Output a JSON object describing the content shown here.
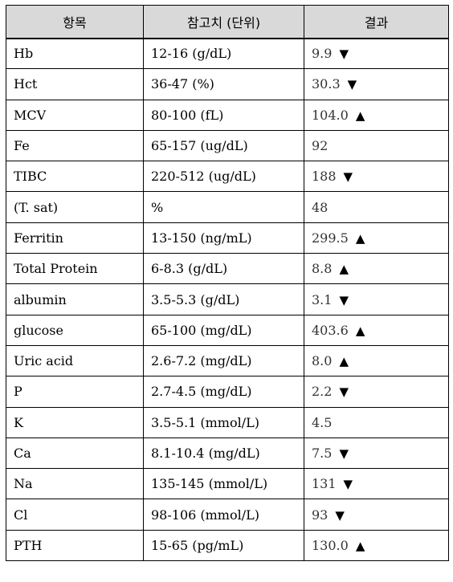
{
  "headers": [
    "항목",
    "참고치 (단위)",
    "결과"
  ],
  "rows": [
    {
      "item": "Hb",
      "ref": "12-16 (g/dL)",
      "result": "9.9",
      "flag": "▼"
    },
    {
      "item": "Hct",
      "ref": "36-47 (%)",
      "result": "30.3",
      "flag": "▼"
    },
    {
      "item": "MCV",
      "ref": "80-100 (fL)",
      "result": "104.0",
      "flag": "▲"
    },
    {
      "item": "Fe",
      "ref": "65-157 (ug/dL)",
      "result": "92",
      "flag": ""
    },
    {
      "item": "TIBC",
      "ref": "220-512 (ug/dL)",
      "result": "188",
      "flag": "▼"
    },
    {
      "item": "(T. sat)",
      "ref": "%",
      "result": "48",
      "flag": ""
    },
    {
      "item": "Ferritin",
      "ref": "13-150 (ng/mL)",
      "result": "299.5",
      "flag": "▲"
    },
    {
      "item": "Total Protein",
      "ref": "6-8.3 (g/dL)",
      "result": "8.8",
      "flag": "▲"
    },
    {
      "item": "albumin",
      "ref": "3.5-5.3 (g/dL)",
      "result": "3.1",
      "flag": "▼"
    },
    {
      "item": "glucose",
      "ref": "65-100 (mg/dL)",
      "result": "403.6",
      "flag": "▲"
    },
    {
      "item": "Uric acid",
      "ref": "2.6-7.2 (mg/dL)",
      "result": "8.0",
      "flag": "▲"
    },
    {
      "item": "P",
      "ref": "2.7-4.5 (mg/dL)",
      "result": "2.2",
      "flag": "▼"
    },
    {
      "item": "K",
      "ref": "3.5-5.1 (mmol/L)",
      "result": "4.5",
      "flag": ""
    },
    {
      "item": "Ca",
      "ref": "8.1-10.4 (mg/dL)",
      "result": "7.5",
      "flag": "▼"
    },
    {
      "item": "Na",
      "ref": "135-145 (mmol/L)",
      "result": "131",
      "flag": "▼"
    },
    {
      "item": "Cl",
      "ref": "98-106 (mmol/L)",
      "result": "93",
      "flag": "▼"
    },
    {
      "item": "PTH",
      "ref": "15-65 (pg/mL)",
      "result": "130.0",
      "flag": "▲"
    }
  ]
}
